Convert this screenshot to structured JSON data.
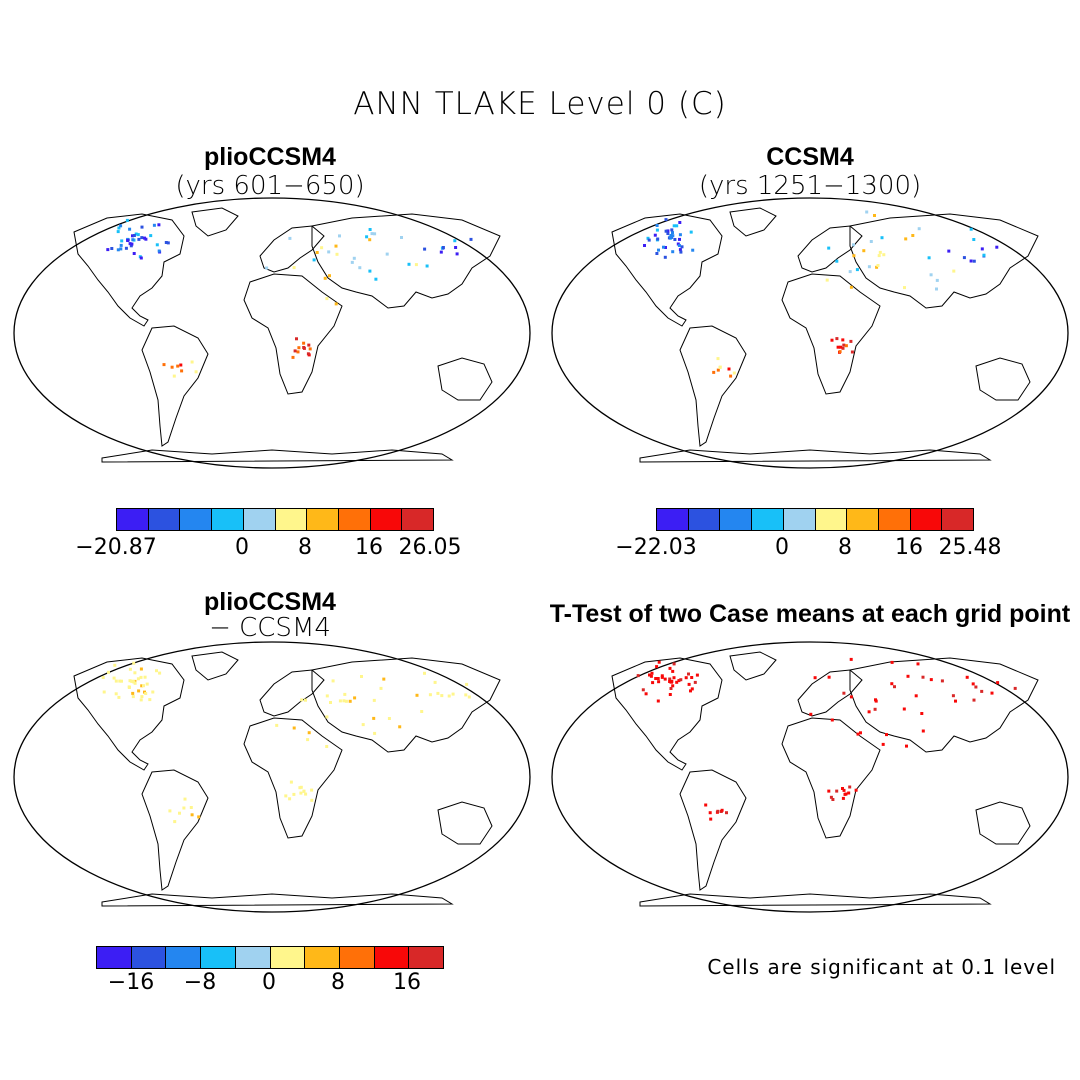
{
  "figure": {
    "title": "ANN TLAKE Level 0 (C)",
    "colors": [
      "#3c1ef4",
      "#2c52e0",
      "#2486f0",
      "#18c0f8",
      "#a0d2f0",
      "#fff68c",
      "#ffb818",
      "#ff7008",
      "#f80808",
      "#d82828"
    ]
  },
  "panels": {
    "top_left": {
      "title": "plioCCSM4",
      "subtitle": "(yrs 601−650)"
    },
    "top_right": {
      "title": "CCSM4",
      "subtitle": "(yrs 1251−1300)"
    },
    "bottom_left": {
      "title": "plioCCSM4",
      "subtitle": "− CCSM4"
    },
    "bottom_right": {
      "title": "T-Test of two Case means at each grid point"
    }
  },
  "colorbars": {
    "cb1": [
      "−20.87",
      "0",
      "8",
      "16",
      "26.05"
    ],
    "cb2": [
      "−22.03",
      "0",
      "8",
      "16",
      "25.48"
    ],
    "cb3": [
      "−16",
      "−8",
      "0",
      "8",
      "16"
    ]
  },
  "note": "Cells are significant at 0.1 level"
}
